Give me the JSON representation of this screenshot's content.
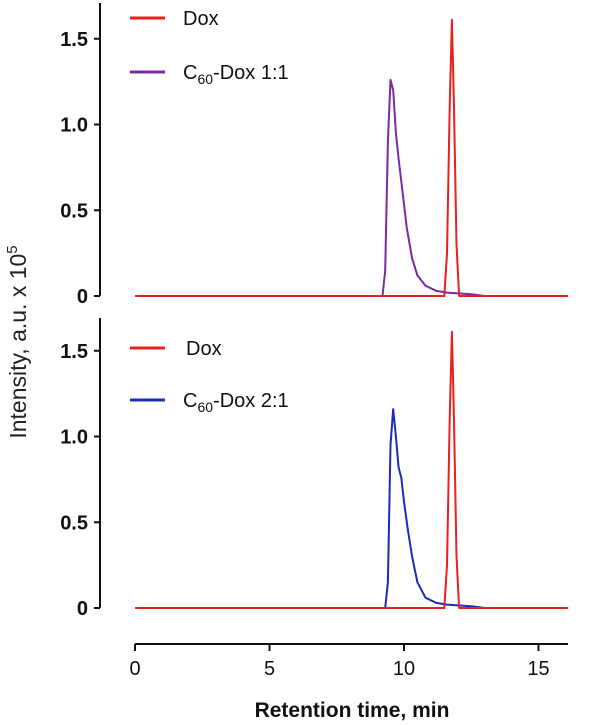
{
  "ylabel": "Intensity, a.u. x 10",
  "ylabel_exp": "5",
  "xlabel": "Retention time, min",
  "chart_data": [
    {
      "type": "line",
      "panel": "top",
      "xlim": [
        0,
        16
      ],
      "ylim": [
        0,
        1.7
      ],
      "yticks": [
        "0",
        "0.5",
        "1.0",
        "1.5"
      ],
      "legend_position": "top-left",
      "series": [
        {
          "name": "Dox",
          "color": "#e8201e",
          "x": [
            0,
            11.5,
            11.6,
            11.7,
            11.78,
            11.86,
            11.95,
            12.05,
            16.1
          ],
          "y": [
            0,
            0,
            0.25,
            1.1,
            1.61,
            1.1,
            0.3,
            0,
            0
          ]
        },
        {
          "name": "C60-Dox 1:1",
          "name_parts": [
            "C",
            "60",
            "-Dox 1:1"
          ],
          "color": "#7b2aa3",
          "x": [
            0,
            9.2,
            9.3,
            9.4,
            9.5,
            9.6,
            9.7,
            9.8,
            9.95,
            10.1,
            10.3,
            10.5,
            10.8,
            11.2,
            11.6,
            12.0,
            12.5,
            13.0,
            16.1
          ],
          "y": [
            0,
            0,
            0.15,
            0.9,
            1.26,
            1.2,
            0.95,
            0.8,
            0.6,
            0.4,
            0.22,
            0.12,
            0.06,
            0.03,
            0.02,
            0.015,
            0.01,
            0,
            0
          ]
        }
      ]
    },
    {
      "type": "line",
      "panel": "bottom",
      "xlim": [
        0,
        16
      ],
      "ylim": [
        0,
        1.7
      ],
      "yticks": [
        "0",
        "0.5",
        "1.0",
        "1.5"
      ],
      "xticks": [
        "0",
        "5",
        "10",
        "15"
      ],
      "legend_position": "top-left",
      "series": [
        {
          "name": "Dox",
          "color": "#e8201e",
          "x": [
            0,
            11.5,
            11.6,
            11.7,
            11.78,
            11.86,
            11.95,
            12.05,
            16.1
          ],
          "y": [
            0,
            0,
            0.25,
            1.1,
            1.61,
            1.1,
            0.3,
            0,
            0
          ]
        },
        {
          "name": "C60-Dox 2:1",
          "name_parts": [
            "C",
            "60",
            "-Dox 2:1"
          ],
          "color": "#1c2bb8",
          "x": [
            0,
            9.3,
            9.4,
            9.5,
            9.6,
            9.7,
            9.8,
            9.9,
            10.0,
            10.15,
            10.3,
            10.5,
            10.8,
            11.2,
            11.6,
            12.0,
            12.5,
            13.0,
            16.1
          ],
          "y": [
            0,
            0,
            0.15,
            0.95,
            1.16,
            1.0,
            0.82,
            0.76,
            0.62,
            0.45,
            0.3,
            0.15,
            0.06,
            0.03,
            0.02,
            0.015,
            0.01,
            0,
            0
          ]
        }
      ]
    }
  ]
}
